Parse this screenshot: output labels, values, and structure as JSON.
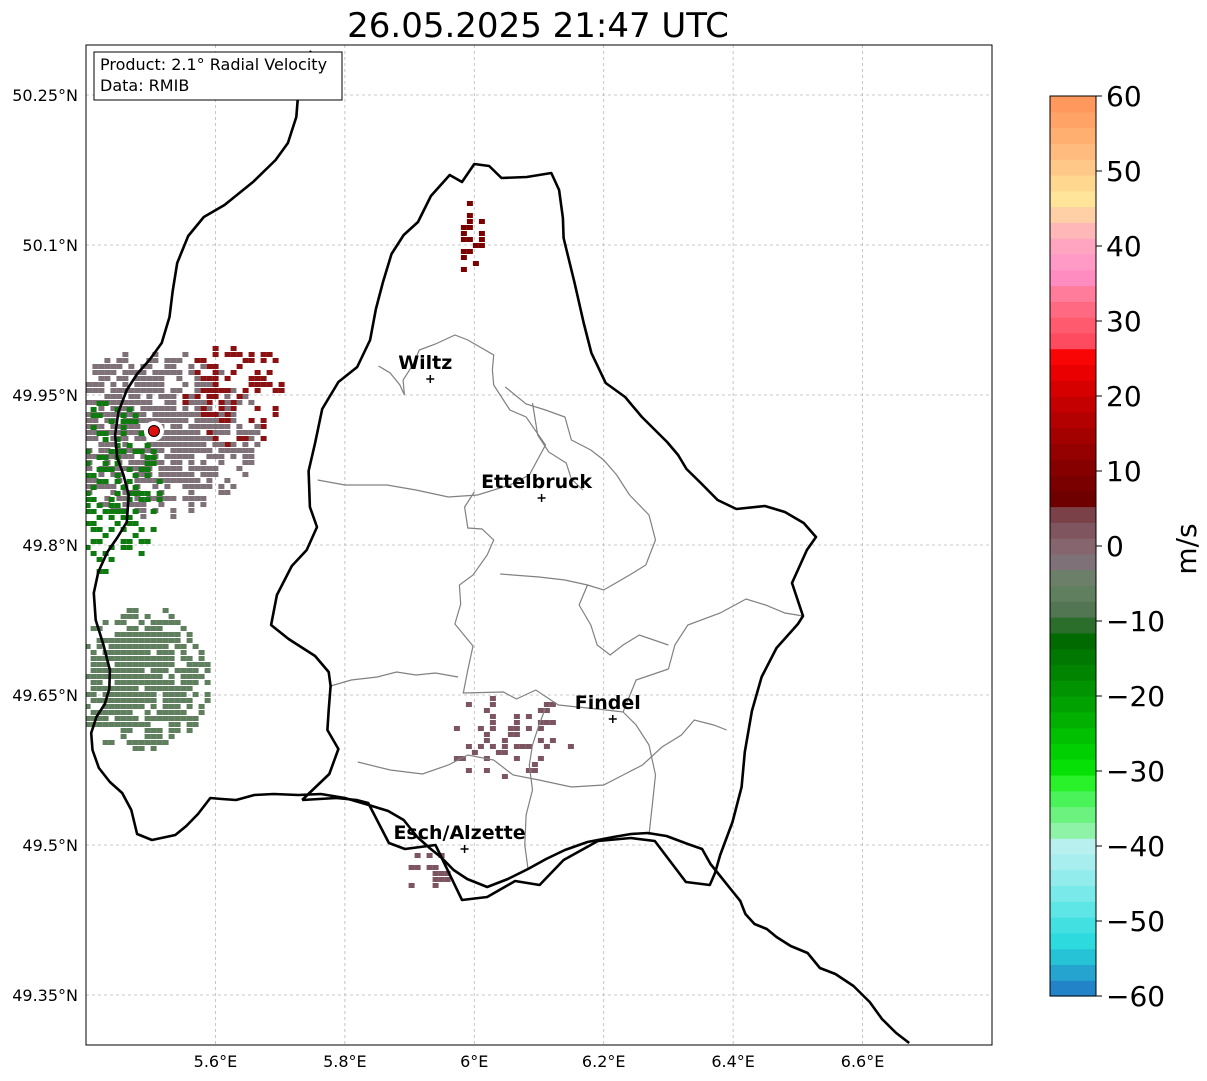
{
  "title": "26.05.2025 21:47 UTC",
  "info": {
    "product": "Product: 2.1° Radial Velocity",
    "source": "Data: RMIB"
  },
  "map": {
    "extent": {
      "lon": [
        5.4,
        6.8
      ],
      "lat": [
        49.3,
        50.3
      ]
    },
    "lat_ticks": [
      {
        "value": 50.25,
        "label": "50.25°N"
      },
      {
        "value": 50.1,
        "label": "50.1°N"
      },
      {
        "value": 49.95,
        "label": "49.95°N"
      },
      {
        "value": 49.8,
        "label": "49.8°N"
      },
      {
        "value": 49.65,
        "label": "49.65°N"
      },
      {
        "value": 49.5,
        "label": "49.5°N"
      },
      {
        "value": 49.35,
        "label": "49.35°N"
      }
    ],
    "lon_ticks": [
      {
        "value": 5.6,
        "label": "5.6°E"
      },
      {
        "value": 5.8,
        "label": "5.8°E"
      },
      {
        "value": 6.0,
        "label": "6°E"
      },
      {
        "value": 6.2,
        "label": "6.2°E"
      },
      {
        "value": 6.4,
        "label": "6.4°E"
      },
      {
        "value": 6.6,
        "label": "6.6°E"
      }
    ],
    "radar_site": {
      "lon": 5.505,
      "lat": 49.914
    },
    "cities": [
      {
        "name": "Wiltz",
        "lon": 5.932,
        "lat": 49.966
      },
      {
        "name": "Ettelbruck",
        "lon": 6.104,
        "lat": 49.847
      },
      {
        "name": "Findel",
        "lon": 6.214,
        "lat": 49.626
      },
      {
        "name": "Esch/Alzette",
        "lon": 5.985,
        "lat": 49.496
      }
    ],
    "border": [
      [
        5.748,
        50.294
      ],
      [
        5.741,
        50.288
      ],
      [
        5.729,
        50.26
      ],
      [
        5.725,
        50.228
      ],
      [
        5.712,
        50.202
      ],
      [
        5.693,
        50.185
      ],
      [
        5.658,
        50.163
      ],
      [
        5.614,
        50.14
      ],
      [
        5.582,
        50.128
      ],
      [
        5.558,
        50.109
      ],
      [
        5.541,
        50.082
      ],
      [
        5.534,
        50.054
      ],
      [
        5.529,
        50.028
      ],
      [
        5.517,
        50.002
      ],
      [
        5.498,
        49.985
      ],
      [
        5.479,
        49.971
      ],
      [
        5.463,
        49.955
      ],
      [
        5.45,
        49.933
      ],
      [
        5.445,
        49.91
      ],
      [
        5.448,
        49.888
      ],
      [
        5.458,
        49.87
      ],
      [
        5.466,
        49.85
      ],
      [
        5.463,
        49.823
      ],
      [
        5.449,
        49.808
      ],
      [
        5.433,
        49.793
      ],
      [
        5.419,
        49.773
      ],
      [
        5.412,
        49.752
      ],
      [
        5.415,
        49.725
      ],
      [
        5.427,
        49.7
      ],
      [
        5.437,
        49.675
      ],
      [
        5.436,
        49.656
      ],
      [
        5.429,
        49.641
      ],
      [
        5.416,
        49.628
      ],
      [
        5.408,
        49.612
      ],
      [
        5.41,
        49.595
      ],
      [
        5.42,
        49.577
      ],
      [
        5.437,
        49.563
      ],
      [
        5.456,
        49.552
      ],
      [
        5.47,
        49.535
      ],
      [
        5.479,
        49.511
      ],
      [
        5.502,
        49.505
      ],
      [
        5.538,
        49.51
      ],
      [
        5.555,
        49.519
      ],
      [
        5.573,
        49.531
      ],
      [
        5.592,
        49.547
      ],
      [
        5.61,
        49.546
      ],
      [
        5.632,
        49.545
      ],
      [
        5.66,
        49.55
      ],
      [
        5.69,
        49.551
      ],
      [
        5.728,
        49.55
      ],
      [
        5.763,
        49.551
      ],
      [
        5.8,
        49.547
      ],
      [
        5.837,
        49.54
      ],
      [
        5.867,
        49.534
      ],
      [
        5.891,
        49.525
      ],
      [
        5.912,
        49.508
      ],
      [
        5.931,
        49.497
      ],
      [
        5.95,
        49.487
      ],
      [
        5.968,
        49.475
      ],
      [
        5.989,
        49.466
      ],
      [
        6.02,
        49.458
      ],
      [
        6.052,
        49.466
      ],
      [
        6.083,
        49.476
      ],
      [
        6.111,
        49.486
      ],
      [
        6.14,
        49.495
      ],
      [
        6.175,
        49.503
      ],
      [
        6.215,
        49.508
      ],
      [
        6.242,
        49.511
      ],
      [
        6.268,
        49.512
      ],
      [
        6.297,
        49.509
      ],
      [
        6.33,
        49.501
      ],
      [
        6.352,
        49.496
      ],
      [
        6.365,
        49.481
      ],
      [
        6.38,
        49.469
      ],
      [
        6.396,
        49.456
      ],
      [
        6.411,
        49.444
      ],
      [
        6.419,
        49.431
      ],
      [
        6.433,
        49.421
      ],
      [
        6.452,
        49.416
      ],
      [
        6.467,
        49.408
      ],
      [
        6.489,
        49.399
      ],
      [
        6.515,
        49.392
      ],
      [
        6.534,
        49.377
      ],
      [
        6.558,
        49.371
      ],
      [
        6.586,
        49.359
      ],
      [
        6.611,
        49.343
      ],
      [
        6.63,
        49.326
      ],
      [
        6.652,
        49.312
      ],
      [
        6.672,
        49.302
      ]
    ],
    "luxembourg": [
      [
        5.734,
        49.545
      ],
      [
        5.787,
        49.547
      ],
      [
        5.818,
        49.545
      ],
      [
        5.836,
        49.542
      ],
      [
        5.868,
        49.502
      ],
      [
        5.893,
        49.496
      ],
      [
        5.94,
        49.5
      ],
      [
        5.981,
        49.445
      ],
      [
        6.02,
        49.448
      ],
      [
        6.063,
        49.464
      ],
      [
        6.101,
        49.46
      ],
      [
        6.138,
        49.485
      ],
      [
        6.191,
        49.504
      ],
      [
        6.242,
        49.507
      ],
      [
        6.279,
        49.504
      ],
      [
        6.327,
        49.463
      ],
      [
        6.364,
        49.46
      ],
      [
        6.372,
        49.472
      ],
      [
        6.38,
        49.49
      ],
      [
        6.399,
        49.523
      ],
      [
        6.413,
        49.558
      ],
      [
        6.418,
        49.593
      ],
      [
        6.429,
        49.634
      ],
      [
        6.444,
        49.668
      ],
      [
        6.467,
        49.697
      ],
      [
        6.5,
        49.721
      ],
      [
        6.508,
        49.729
      ],
      [
        6.491,
        49.762
      ],
      [
        6.514,
        49.795
      ],
      [
        6.528,
        49.808
      ],
      [
        6.509,
        49.822
      ],
      [
        6.48,
        49.833
      ],
      [
        6.449,
        49.839
      ],
      [
        6.405,
        49.836
      ],
      [
        6.376,
        49.845
      ],
      [
        6.35,
        49.862
      ],
      [
        6.328,
        49.876
      ],
      [
        6.315,
        49.89
      ],
      [
        6.298,
        49.903
      ],
      [
        6.259,
        49.928
      ],
      [
        6.233,
        49.948
      ],
      [
        6.203,
        49.962
      ],
      [
        6.181,
        49.992
      ],
      [
        6.169,
        50.022
      ],
      [
        6.155,
        50.062
      ],
      [
        6.138,
        50.107
      ],
      [
        6.137,
        50.127
      ],
      [
        6.131,
        50.155
      ],
      [
        6.119,
        50.172
      ],
      [
        6.081,
        50.168
      ],
      [
        6.042,
        50.167
      ],
      [
        6.023,
        50.179
      ],
      [
        6.0,
        50.181
      ],
      [
        5.981,
        50.163
      ],
      [
        5.962,
        50.17
      ],
      [
        5.933,
        50.149
      ],
      [
        5.913,
        50.123
      ],
      [
        5.891,
        50.11
      ],
      [
        5.872,
        50.091
      ],
      [
        5.859,
        50.063
      ],
      [
        5.848,
        50.036
      ],
      [
        5.839,
        50.005
      ],
      [
        5.819,
        49.978
      ],
      [
        5.79,
        49.963
      ],
      [
        5.765,
        49.936
      ],
      [
        5.754,
        49.902
      ],
      [
        5.744,
        49.874
      ],
      [
        5.746,
        49.838
      ],
      [
        5.757,
        49.818
      ],
      [
        5.741,
        49.795
      ],
      [
        5.718,
        49.779
      ],
      [
        5.695,
        49.75
      ],
      [
        5.686,
        49.72
      ],
      [
        5.713,
        49.706
      ],
      [
        5.754,
        49.689
      ],
      [
        5.775,
        49.673
      ],
      [
        5.778,
        49.659
      ],
      [
        5.775,
        49.635
      ],
      [
        5.773,
        49.615
      ],
      [
        5.79,
        49.596
      ],
      [
        5.776,
        49.571
      ],
      [
        5.734,
        49.545
      ]
    ],
    "cantons": [
      [
        [
          5.852,
          49.979
        ],
        [
          5.87,
          49.972
        ],
        [
          5.885,
          49.96
        ],
        [
          5.892,
          49.95
        ],
        [
          5.89,
          49.965
        ],
        [
          5.905,
          49.98
        ],
        [
          5.915,
          49.995
        ],
        [
          5.94,
          50.001
        ],
        [
          5.97,
          50.01
        ],
        [
          5.99,
          50.005
        ],
        [
          6.03,
          49.99
        ],
        [
          6.028,
          49.975
        ],
        [
          6.03,
          49.96
        ],
        [
          6.055,
          49.935
        ],
        [
          6.08,
          49.928
        ],
        [
          6.11,
          49.9
        ],
        [
          6.085,
          49.87
        ],
        [
          6.055,
          49.86
        ],
        [
          6.005,
          49.85
        ],
        [
          5.96,
          49.848
        ],
        [
          5.91,
          49.855
        ],
        [
          5.865,
          49.86
        ],
        [
          5.8,
          49.86
        ],
        [
          5.758,
          49.865
        ]
      ],
      [
        [
          6.048,
          49.958
        ],
        [
          6.08,
          49.941
        ],
        [
          6.11,
          49.935
        ],
        [
          6.14,
          49.928
        ],
        [
          6.15,
          49.905
        ],
        [
          6.18,
          49.895
        ],
        [
          6.2,
          49.885
        ],
        [
          6.22,
          49.87
        ],
        [
          6.23,
          49.86
        ],
        [
          6.24,
          49.85
        ]
      ],
      [
        [
          6.09,
          49.942
        ],
        [
          6.098,
          49.91
        ],
        [
          6.115,
          49.893
        ],
        [
          6.142,
          49.882
        ],
        [
          6.15,
          49.866
        ],
        [
          6.168,
          49.855
        ]
      ],
      [
        [
          6.0,
          49.853
        ],
        [
          5.985,
          49.838
        ],
        [
          5.99,
          49.817
        ],
        [
          6.012,
          49.816
        ],
        [
          6.03,
          49.805
        ],
        [
          6.02,
          49.79
        ],
        [
          5.998,
          49.77
        ],
        [
          5.977,
          49.76
        ],
        [
          5.979,
          49.741
        ],
        [
          5.97,
          49.721
        ],
        [
          5.998,
          49.699
        ],
        [
          5.99,
          49.675
        ],
        [
          5.983,
          49.652
        ],
        [
          6.045,
          49.653
        ],
        [
          6.065,
          49.646
        ],
        [
          6.095,
          49.655
        ],
        [
          6.13,
          49.64
        ],
        [
          6.19,
          49.636
        ],
        [
          6.23,
          49.633
        ],
        [
          6.25,
          49.665
        ],
        [
          6.3,
          49.676
        ]
      ],
      [
        [
          6.3,
          49.676
        ],
        [
          6.31,
          49.7
        ],
        [
          6.33,
          49.72
        ],
        [
          6.38,
          49.732
        ],
        [
          6.42,
          49.746
        ],
        [
          6.45,
          49.74
        ],
        [
          6.48,
          49.732
        ],
        [
          6.508,
          49.729
        ]
      ],
      [
        [
          6.24,
          49.85
        ],
        [
          6.27,
          49.83
        ],
        [
          6.28,
          49.805
        ],
        [
          6.265,
          49.78
        ],
        [
          6.24,
          49.77
        ],
        [
          6.2,
          49.755
        ],
        [
          6.175,
          49.76
        ],
        [
          6.14,
          49.765
        ],
        [
          6.1,
          49.768
        ],
        [
          6.04,
          49.771
        ]
      ],
      [
        [
          6.175,
          49.76
        ],
        [
          6.162,
          49.74
        ],
        [
          6.18,
          49.72
        ],
        [
          6.19,
          49.7
        ],
        [
          6.21,
          49.69
        ],
        [
          6.23,
          49.7
        ],
        [
          6.255,
          49.71
        ],
        [
          6.3,
          49.7
        ]
      ],
      [
        [
          5.778,
          49.659
        ],
        [
          5.81,
          49.665
        ],
        [
          5.85,
          49.668
        ],
        [
          5.88,
          49.673
        ],
        [
          5.91,
          49.67
        ],
        [
          5.94,
          49.672
        ],
        [
          5.975,
          49.668
        ]
      ],
      [
        [
          5.82,
          49.583
        ],
        [
          5.87,
          49.575
        ],
        [
          5.92,
          49.571
        ],
        [
          5.96,
          49.58
        ],
        [
          5.99,
          49.59
        ],
        [
          6.03,
          49.585
        ],
        [
          6.06,
          49.57
        ],
        [
          6.1,
          49.565
        ],
        [
          6.15,
          49.558
        ],
        [
          6.2,
          49.56
        ],
        [
          6.23,
          49.57
        ],
        [
          6.26,
          49.58
        ],
        [
          6.29,
          49.598
        ],
        [
          6.32,
          49.61
        ],
        [
          6.34,
          49.625
        ],
        [
          6.37,
          49.62
        ],
        [
          6.39,
          49.615
        ]
      ],
      [
        [
          6.083,
          49.476
        ],
        [
          6.078,
          49.5
        ],
        [
          6.08,
          49.53
        ],
        [
          6.09,
          49.555
        ],
        [
          6.085,
          49.58
        ],
        [
          6.09,
          49.6
        ],
        [
          6.1,
          49.62
        ],
        [
          6.11,
          49.637
        ]
      ],
      [
        [
          6.23,
          49.633
        ],
        [
          6.25,
          49.62
        ],
        [
          6.27,
          49.6
        ],
        [
          6.28,
          49.57
        ],
        [
          6.275,
          49.54
        ],
        [
          6.27,
          49.51
        ]
      ]
    ],
    "echo_clusters": [
      {
        "lon": 5.505,
        "lat": 49.914,
        "r_lon": 0.16,
        "r_lat": 0.085,
        "color": "#7e7278",
        "density": 0.85
      },
      {
        "lon": 5.63,
        "lat": 49.95,
        "r_lon": 0.09,
        "r_lat": 0.055,
        "color": "#8a1212",
        "density": 0.35
      },
      {
        "lon": 5.44,
        "lat": 49.86,
        "r_lon": 0.07,
        "r_lat": 0.09,
        "color": "#0f7a0f",
        "density": 0.45
      },
      {
        "lon": 5.48,
        "lat": 49.668,
        "r_lon": 0.11,
        "r_lat": 0.075,
        "color": "#5f7f5f",
        "density": 0.9
      },
      {
        "lon": 6.05,
        "lat": 49.61,
        "r_lon": 0.1,
        "r_lat": 0.045,
        "color": "#7c5560",
        "density": 0.25
      },
      {
        "lon": 5.92,
        "lat": 49.478,
        "r_lon": 0.04,
        "r_lat": 0.02,
        "color": "#7c5560",
        "density": 0.6
      },
      {
        "lon": 5.99,
        "lat": 50.11,
        "r_lon": 0.02,
        "r_lat": 0.04,
        "color": "#7a0000",
        "density": 0.45
      }
    ]
  },
  "colorbar": {
    "vmin": -60,
    "vmax": 60,
    "ticks": [
      {
        "value": 60,
        "label": "60"
      },
      {
        "value": 50,
        "label": "50"
      },
      {
        "value": 40,
        "label": "40"
      },
      {
        "value": 30,
        "label": "30"
      },
      {
        "value": 20,
        "label": "20"
      },
      {
        "value": 10,
        "label": "10"
      },
      {
        "value": 0,
        "label": "0"
      },
      {
        "value": -10,
        "label": "−10"
      },
      {
        "value": -20,
        "label": "−20"
      },
      {
        "value": -30,
        "label": "−30"
      },
      {
        "value": -40,
        "label": "−40"
      },
      {
        "value": -50,
        "label": "−50"
      },
      {
        "value": -60,
        "label": "−60"
      }
    ],
    "unit": "m/s",
    "colors": [
      "#2383c8",
      "#25a4cf",
      "#26c3d6",
      "#2ddbde",
      "#43e0e2",
      "#5ee6e6",
      "#7ae9e9",
      "#93ecec",
      "#a8eeee",
      "#b8f0f0",
      "#8ef3a6",
      "#6cf27f",
      "#4af35a",
      "#2af22a",
      "#06e006",
      "#02cf02",
      "#01bf01",
      "#01b001",
      "#01a101",
      "#019301",
      "#018501",
      "#017801",
      "#016b01",
      "#2b6d2b",
      "#527552",
      "#5f7f5f",
      "#6c7f68",
      "#7e7278",
      "#86656f",
      "#7f5560",
      "#7b4148",
      "#6f0000",
      "#7a0000",
      "#870000",
      "#950000",
      "#a30000",
      "#b30000",
      "#c50000",
      "#d60000",
      "#ea0000",
      "#fa0505",
      "#ff4b5f",
      "#ff5a6d",
      "#ff6a82",
      "#ff7c9b",
      "#ff8cc0",
      "#ff99c6",
      "#ffa5c1",
      "#ffb7b7",
      "#ffcfa5",
      "#ffe59a",
      "#ffd78e",
      "#ffc889",
      "#ffbb7d",
      "#ffb070",
      "#ffa466",
      "#ff985c"
    ]
  }
}
